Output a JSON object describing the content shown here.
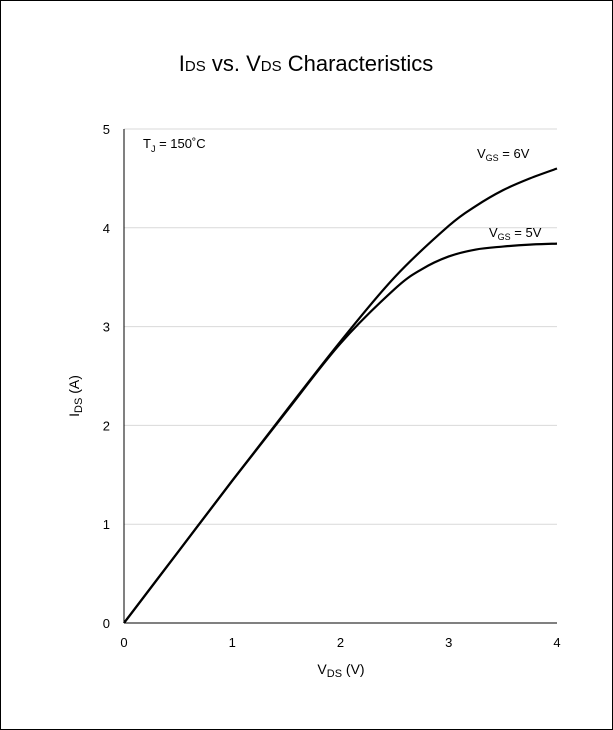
{
  "chart_data": {
    "type": "line",
    "title": {
      "main1": "I",
      "sub1": "DS",
      "mid": " vs. V",
      "sub2": "DS",
      "end": " Characteristics"
    },
    "xlabel": {
      "main": "V",
      "sub": "DS",
      "rest": " (V)"
    },
    "ylabel": {
      "main": "I",
      "sub": "DS",
      "rest": " (A)"
    },
    "xlim": [
      0,
      4
    ],
    "ylim": [
      0,
      5
    ],
    "x_ticks": [
      0,
      1,
      2,
      3,
      4
    ],
    "y_ticks": [
      0,
      1,
      2,
      3,
      4,
      5
    ],
    "grid": "horizontal",
    "annotation": {
      "main": "T",
      "sub": "J",
      "rest": " = 150˚C"
    },
    "series": [
      {
        "name": "VGS = 6V",
        "label": {
          "main": "V",
          "sub": "GS",
          "rest": " = 6V"
        },
        "x": [
          0,
          0.5,
          1.0,
          1.5,
          2.0,
          2.5,
          3.0,
          3.25,
          3.5,
          3.75,
          4.0
        ],
        "y": [
          0,
          0.72,
          1.44,
          2.15,
          2.85,
          3.5,
          4.02,
          4.22,
          4.38,
          4.5,
          4.6
        ]
      },
      {
        "name": "VGS = 5V",
        "label": {
          "main": "V",
          "sub": "GS",
          "rest": " = 5V"
        },
        "x": [
          0,
          0.5,
          1.0,
          1.5,
          2.0,
          2.5,
          2.75,
          3.0,
          3.25,
          3.5,
          3.75,
          4.0
        ],
        "y": [
          0,
          0.72,
          1.44,
          2.14,
          2.83,
          3.38,
          3.58,
          3.71,
          3.78,
          3.81,
          3.83,
          3.84
        ]
      }
    ]
  }
}
